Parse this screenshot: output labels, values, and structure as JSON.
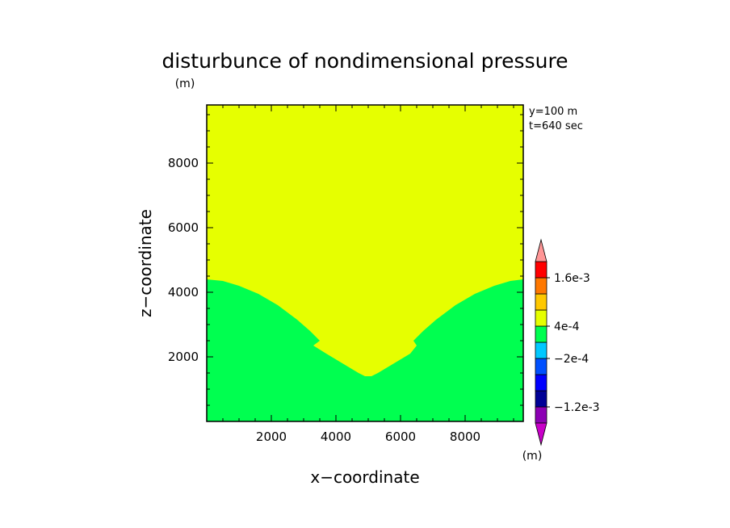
{
  "chart_data": {
    "type": "heatmap",
    "title": "disturbunce of nondimensional pressure",
    "unit_top": "(m)",
    "unit_colorbar": "(m)",
    "xlabel": "x−coordinate",
    "ylabel": "z−coordinate",
    "annotations": [
      "y=100 m",
      "t=640 sec"
    ],
    "xlim": [
      0,
      9800
    ],
    "ylim": [
      0,
      9800
    ],
    "x_ticks": [
      2000,
      4000,
      6000,
      8000
    ],
    "x_tick_labels": [
      "2000",
      "4000",
      "6000",
      "8000"
    ],
    "y_ticks": [
      2000,
      4000,
      6000,
      8000
    ],
    "y_tick_labels": [
      "2000",
      "4000",
      "6000",
      "8000"
    ],
    "colorbar": {
      "levels": [
        "-1.6e-3",
        "-1.2e-3",
        "-8e-4",
        "-4e-4",
        "-2e-4",
        "0",
        "4e-4",
        "8e-4",
        "1.2e-3",
        "1.6e-3",
        "2e-3"
      ],
      "labels": [
        "1.6e-3",
        "4e-4",
        "−2e-4",
        "−1.2e-3"
      ],
      "colors": [
        "#c800c8",
        "#8c00b4",
        "#000096",
        "#0000ff",
        "#0050ff",
        "#00c8ff",
        "#00ff50",
        "#e6ff00",
        "#ffc800",
        "#ff7800",
        "#ff0000",
        "#ff9696"
      ]
    },
    "regions": [
      {
        "level_color": "#e6ff00",
        "description_value": "0 to 4e-4"
      },
      {
        "level_color": "#00ff50",
        "description_value": "-2e-4 to 0"
      }
    ],
    "boundary": [
      [
        0,
        4400
      ],
      [
        500,
        4350
      ],
      [
        1000,
        4200
      ],
      [
        1600,
        3950
      ],
      [
        2200,
        3600
      ],
      [
        2800,
        3150
      ],
      [
        3200,
        2800
      ],
      [
        3500,
        2500
      ],
      [
        3300,
        2350
      ],
      [
        3700,
        2100
      ],
      [
        4200,
        1800
      ],
      [
        4700,
        1500
      ],
      [
        4900,
        1400
      ],
      [
        5100,
        1400
      ],
      [
        5300,
        1500
      ],
      [
        5800,
        1800
      ],
      [
        6300,
        2100
      ],
      [
        6500,
        2350
      ],
      [
        6400,
        2500
      ],
      [
        6700,
        2800
      ],
      [
        7100,
        3150
      ],
      [
        7700,
        3600
      ],
      [
        8300,
        3950
      ],
      [
        8900,
        4200
      ],
      [
        9400,
        4350
      ],
      [
        9800,
        4400
      ]
    ]
  }
}
